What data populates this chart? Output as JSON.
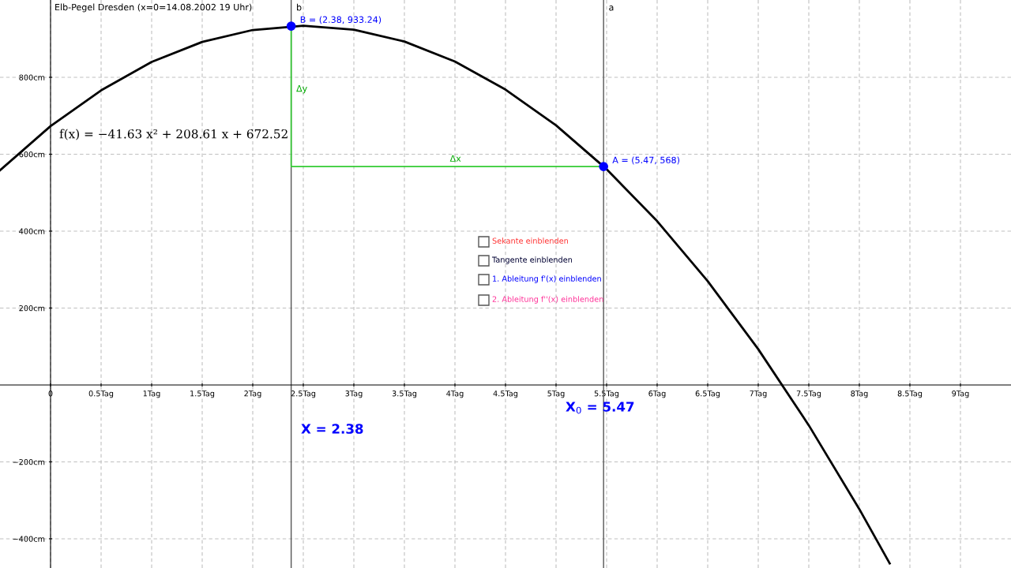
{
  "chart_data": {
    "type": "line",
    "title": "Elb-Pegel Dresden (x=0=14.08.2002 19 Uhr)",
    "series": [
      {
        "color": "#000000",
        "x": [
          -0.5,
          0,
          0.5,
          1,
          1.5,
          2,
          2.5,
          3,
          3.5,
          4,
          4.5,
          5,
          5.47,
          5.5,
          6,
          6.5,
          7,
          7.5,
          8,
          8.3
        ],
        "values": [
          558,
          673,
          766,
          840,
          892,
          923,
          934,
          924,
          893,
          841,
          768,
          675,
          568,
          561,
          426,
          270,
          93,
          -105,
          -323,
          -464
        ]
      },
      {
        "type": "line",
        "color": "#33cc33",
        "x": [
          2.38,
          2.38,
          5.47
        ],
        "values": [
          933,
          568,
          568
        ]
      },
      {
        "type": "scatter",
        "marker": "circle",
        "color": "#0000ff",
        "x": [
          5.47,
          2.38
        ],
        "values": [
          568,
          933.24
        ],
        "value_labels": [
          "A = (5.47, 568)",
          "B = (2.38, 933.24)"
        ]
      }
    ],
    "xlim": [
      -0.5,
      9.5
    ],
    "ylim": [
      -476,
      1001
    ],
    "xticks": [
      {
        "value": 0,
        "label": "0"
      },
      {
        "value": 0.5,
        "label": "0.5Tag"
      },
      {
        "value": 1,
        "label": "1Tag"
      },
      {
        "value": 1.5,
        "label": "1.5Tag"
      },
      {
        "value": 2,
        "label": "2Tag"
      },
      {
        "value": 2.5,
        "label": "2.5Tag"
      },
      {
        "value": 3,
        "label": "3Tag"
      },
      {
        "value": 3.5,
        "label": "3.5Tag"
      },
      {
        "value": 4,
        "label": "4Tag"
      },
      {
        "value": 4.5,
        "label": "4.5Tag"
      },
      {
        "value": 5,
        "label": "5Tag"
      },
      {
        "value": 5.5,
        "label": "5.5Tag"
      },
      {
        "value": 6,
        "label": "6Tag"
      },
      {
        "value": 6.5,
        "label": "6.5Tag"
      },
      {
        "value": 7,
        "label": "7Tag"
      },
      {
        "value": 7.5,
        "label": "7.5Tag"
      },
      {
        "value": 8,
        "label": "8Tag"
      },
      {
        "value": 8.5,
        "label": "8.5Tag"
      },
      {
        "value": 9,
        "label": "9Tag"
      }
    ],
    "yticks": [
      {
        "value": -400,
        "label": "−400cm"
      },
      {
        "value": -200,
        "label": "−200cm"
      },
      {
        "value": 200,
        "label": "200cm"
      },
      {
        "value": 400,
        "label": "400cm"
      },
      {
        "value": 600,
        "label": "600cm"
      },
      {
        "value": 800,
        "label": "800cm"
      }
    ],
    "grid": true,
    "legend": false,
    "line_style": "solid",
    "ref_lines": [
      {
        "axis": "x",
        "value": 2.38,
        "label": "b",
        "color": "#555555"
      },
      {
        "axis": "x",
        "value": 5.47,
        "label": "a",
        "color": "#555555"
      }
    ],
    "annotations": [
      "f(x) = −41.63 x² + 208.61 x + 672.52",
      {
        "text": "Δy",
        "x": 2.38,
        "y": 750
      },
      {
        "text": "Δx",
        "x": 3.9,
        "y": 568
      },
      "X = 2.38",
      "X$_{0}$ = 5.47",
      "Sekante einblenden",
      "Tangente einblenden",
      "1. Ableitung f'(x) einblenden",
      "2. Ableitung f''(x) einblenden"
    ]
  }
}
